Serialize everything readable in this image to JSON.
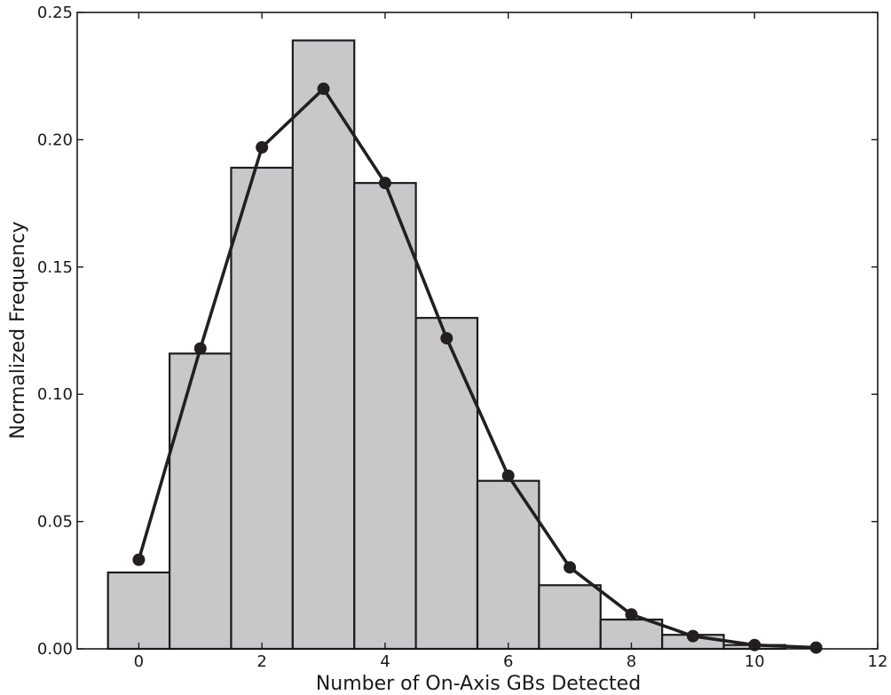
{
  "chart_data": {
    "type": "bar",
    "title": "",
    "xlabel": "Number of On-Axis GBs Detected",
    "ylabel": "Normalized Frequency",
    "xlim": [
      -1,
      12
    ],
    "ylim": [
      0,
      0.25
    ],
    "xticks": [
      0,
      2,
      4,
      6,
      8,
      10,
      12
    ],
    "xtick_labels": [
      "0",
      "2",
      "4",
      "6",
      "8",
      "10",
      "12"
    ],
    "yticks": [
      0,
      0.05,
      0.1,
      0.15,
      0.2,
      0.25
    ],
    "ytick_labels": [
      "0.00",
      "0.05",
      "0.10",
      "0.15",
      "0.20",
      "0.25"
    ],
    "grid": false,
    "series": [
      {
        "type": "bar",
        "x": [
          0,
          1,
          2,
          3,
          4,
          5,
          6,
          7,
          8,
          9,
          10
        ],
        "values": [
          0.03,
          0.116,
          0.189,
          0.239,
          0.183,
          0.13,
          0.066,
          0.025,
          0.0115,
          0.0055,
          0.0015
        ],
        "bin_width": 1,
        "color": "#c8c8ca"
      },
      {
        "type": "line",
        "x": [
          0,
          1,
          2,
          3,
          4,
          5,
          6,
          7,
          8,
          9,
          10,
          11
        ],
        "values": [
          0.035,
          0.118,
          0.197,
          0.22,
          0.183,
          0.122,
          0.068,
          0.032,
          0.0135,
          0.005,
          0.0015,
          0.0005
        ],
        "color": "#231f20",
        "marker": "circle"
      }
    ]
  }
}
